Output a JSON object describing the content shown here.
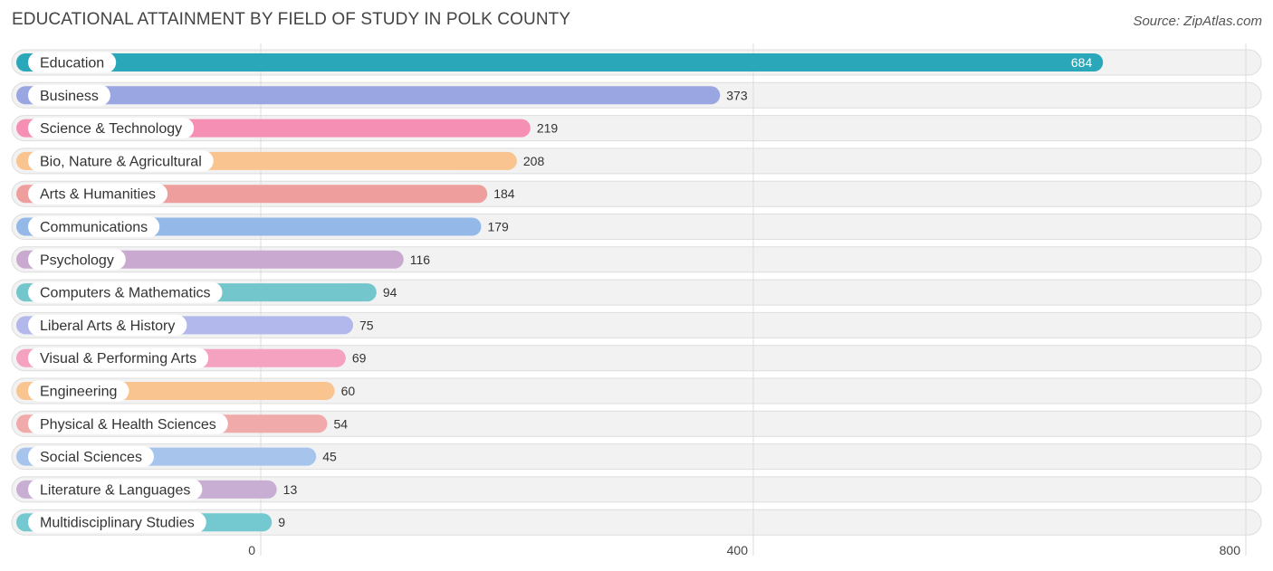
{
  "header": {
    "title": "EDUCATIONAL ATTAINMENT BY FIELD OF STUDY IN POLK COUNTY",
    "source": "Source: ZipAtlas.com"
  },
  "chart_data": {
    "type": "bar",
    "orientation": "horizontal",
    "title": "EDUCATIONAL ATTAINMENT BY FIELD OF STUDY IN POLK COUNTY",
    "xlim": [
      0,
      800
    ],
    "ticks": [
      0,
      400,
      800
    ],
    "tick_labels": [
      "0",
      "400",
      "800"
    ],
    "grid": true,
    "categories": [
      "Education",
      "Business",
      "Science & Technology",
      "Bio, Nature & Agricultural",
      "Arts & Humanities",
      "Communications",
      "Psychology",
      "Computers & Mathematics",
      "Liberal Arts & History",
      "Visual & Performing Arts",
      "Engineering",
      "Physical & Health Sciences",
      "Social Sciences",
      "Literature & Languages",
      "Multidisciplinary Studies"
    ],
    "values": [
      684,
      373,
      219,
      208,
      184,
      179,
      116,
      94,
      75,
      69,
      60,
      54,
      45,
      13,
      9
    ],
    "colors": [
      "#2aa7b8",
      "#9aa6e2",
      "#f590b4",
      "#f9c48f",
      "#ef9e9e",
      "#94b9e8",
      "#c9a9cf",
      "#73c7cc",
      "#b2b7ec",
      "#f5a1c0",
      "#f9c48f",
      "#f0aaaa",
      "#a7c4ec",
      "#c9aed4",
      "#73c9cf"
    ]
  }
}
